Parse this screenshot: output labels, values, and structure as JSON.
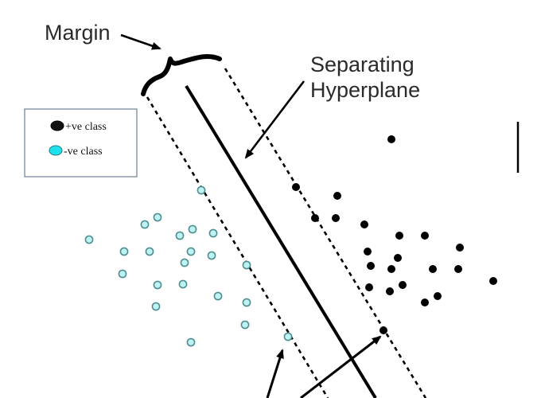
{
  "labels": {
    "margin": "Margin",
    "hyperplane_line1": "Separating",
    "hyperplane_line2": "Hyperplane"
  },
  "legend": {
    "positive": "+ve class",
    "negative": "-ve class"
  },
  "colors": {
    "positive": "#000000",
    "negative": "#bff3f3",
    "negative_stroke": "#4f8f92",
    "line": "#000000"
  },
  "points": {
    "positive": [
      [
        492,
        175
      ],
      [
        372,
        235
      ],
      [
        424,
        246
      ],
      [
        396,
        274
      ],
      [
        422,
        274
      ],
      [
        458,
        282
      ],
      [
        502,
        296
      ],
      [
        534,
        296
      ],
      [
        578,
        311
      ],
      [
        462,
        316
      ],
      [
        500,
        324
      ],
      [
        466,
        334
      ],
      [
        492,
        338
      ],
      [
        544,
        338
      ],
      [
        576,
        338
      ],
      [
        620,
        353
      ],
      [
        506,
        358
      ],
      [
        464,
        361
      ],
      [
        490,
        366
      ],
      [
        550,
        372
      ],
      [
        534,
        380
      ],
      [
        482,
        415
      ]
    ],
    "negative": [
      [
        253,
        239
      ],
      [
        198,
        273
      ],
      [
        182,
        282
      ],
      [
        112,
        301
      ],
      [
        242,
        288
      ],
      [
        226,
        296
      ],
      [
        268,
        293
      ],
      [
        156,
        316
      ],
      [
        188,
        316
      ],
      [
        240,
        316
      ],
      [
        266,
        321
      ],
      [
        232,
        330
      ],
      [
        310,
        333
      ],
      [
        154,
        344
      ],
      [
        230,
        357
      ],
      [
        198,
        358
      ],
      [
        274,
        372
      ],
      [
        310,
        380
      ],
      [
        196,
        385
      ],
      [
        308,
        408
      ],
      [
        362,
        423
      ],
      [
        240,
        430
      ]
    ]
  }
}
